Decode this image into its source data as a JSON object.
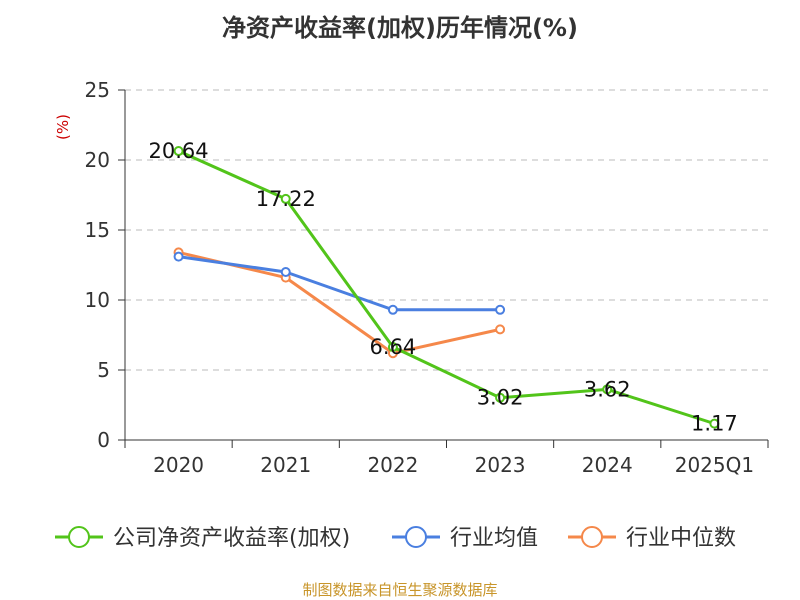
{
  "chart_data": {
    "type": "line",
    "title": "净资产收益率(加权)历年情况(%)",
    "ylabel": "(%)",
    "xlabel": "",
    "ylim": [
      0,
      25
    ],
    "yticks": [
      0,
      5,
      10,
      15,
      20,
      25
    ],
    "grid": true,
    "categories": [
      "2020",
      "2021",
      "2022",
      "2023",
      "2024",
      "2025Q1"
    ],
    "series": [
      {
        "name": "公司净资产收益率(加权)",
        "color": "#52c41a",
        "values": [
          20.64,
          17.22,
          6.64,
          3.02,
          3.62,
          1.17
        ],
        "labels": [
          "20.64",
          "17.22",
          "6.64",
          "3.02",
          "3.62",
          "1.17"
        ]
      },
      {
        "name": "行业均值",
        "color": "#4a7fe0",
        "values": [
          13.1,
          12.0,
          9.3,
          9.3,
          null,
          null
        ]
      },
      {
        "name": "行业中位数",
        "color": "#f5884a",
        "values": [
          13.4,
          11.6,
          6.2,
          7.9,
          null,
          null
        ]
      }
    ],
    "legend_position": "bottom",
    "unit_color": "#cc0000"
  },
  "source": {
    "text": "制图数据来自恒生聚源数据库",
    "color": "#c8952a"
  }
}
